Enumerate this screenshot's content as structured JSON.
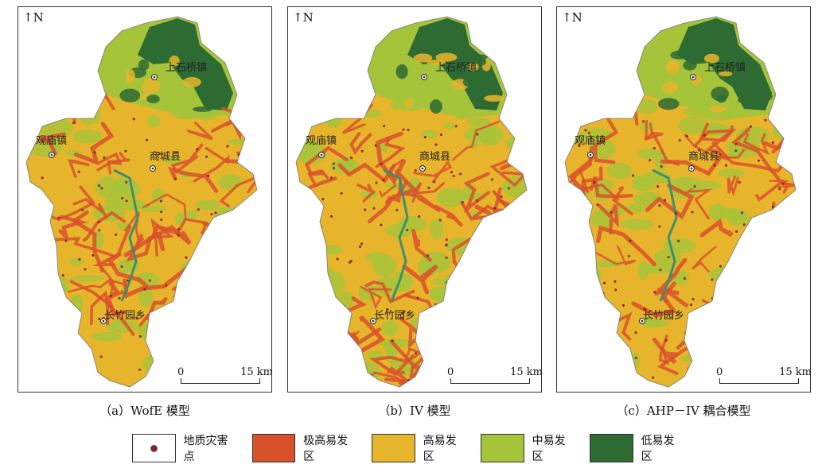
{
  "north_label": "N",
  "panels": [
    {
      "caption": "（a）WofE 模型",
      "scale_start": "0",
      "scale_end": "15 km"
    },
    {
      "caption": "（b）IV 模型",
      "scale_start": "0",
      "scale_end": "15 km"
    },
    {
      "caption": "（c）AHP－IV 耦合模型",
      "scale_start": "0",
      "scale_end": "15 km"
    }
  ],
  "places": [
    "上石桥镇",
    "观庙镇",
    "商城县",
    "长竹园乡"
  ],
  "legend": [
    {
      "label": "地质灾害点",
      "color": "#ffffff",
      "kind": "point"
    },
    {
      "label": "极高易发区",
      "color": "#d9512b",
      "kind": "area"
    },
    {
      "label": "高易发区",
      "color": "#e6b52c",
      "kind": "area"
    },
    {
      "label": "中易发区",
      "color": "#a6c43a",
      "kind": "area"
    },
    {
      "label": "低易发区",
      "color": "#2e6b32",
      "kind": "area"
    }
  ],
  "colors": {
    "very_high": "#d9512b",
    "high": "#e6b52c",
    "medium": "#a6c43a",
    "low": "#2e6b32",
    "hazard_point": "#8a1f1f",
    "river": "#3f8f6a"
  }
}
